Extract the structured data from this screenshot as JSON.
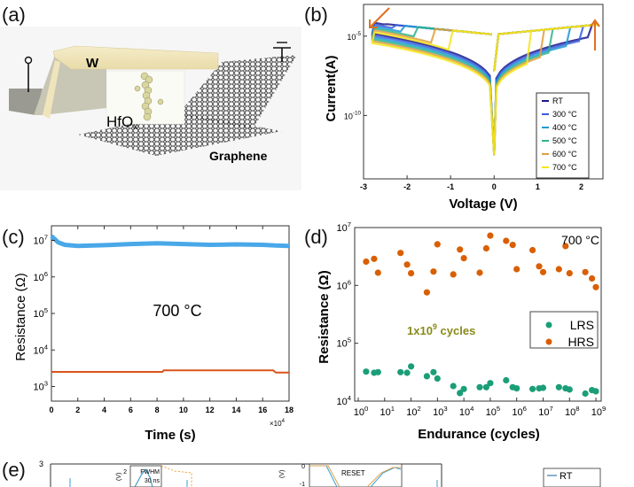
{
  "panels": {
    "a": {
      "label": "(a)",
      "labels": {
        "top_electrode": "W",
        "oxide": "HfO",
        "oxide_sub": "x",
        "bottom_electrode": "Graphene"
      }
    },
    "e": {
      "label": "(e)",
      "y_top_tick": "3",
      "inset1": {
        "ytick_top": "2",
        "ylabel": "(V)",
        "title": "FWHM",
        "subtitle": "30 ns"
      },
      "inset2": {
        "ytick_top": "0",
        "ytick_next": "-1",
        "ylabel": "(V)",
        "title": "RESET"
      },
      "legend": [
        "RT"
      ]
    }
  },
  "chart_data": [
    {
      "id": "b",
      "panel_label": "(b)",
      "type": "line",
      "title": "",
      "xlabel": "Voltage (V)",
      "ylabel": "Current(A)",
      "xlim": [
        -3,
        2.5
      ],
      "ylim_log10": [
        -14,
        -3
      ],
      "xticks": [
        "-3",
        "-2",
        "-1",
        "0",
        "1",
        "2"
      ],
      "xtick_values": [
        -3,
        -2,
        -1,
        0,
        1,
        2
      ],
      "yticks": [
        {
          "base": "10",
          "exp": "-5",
          "value": -5
        },
        {
          "base": "10",
          "exp": "-10",
          "value": -10
        }
      ],
      "legend_position": "bottom-right",
      "series": [
        {
          "name": "RT",
          "color": "#1a1a8c",
          "set_voltage": 2.2,
          "reset_voltage": -2.5
        },
        {
          "name": "300 °C",
          "color": "#3a5de0",
          "set_voltage": 2.0,
          "reset_voltage": -2.3
        },
        {
          "name": "400 °C",
          "color": "#1f9ad6",
          "set_voltage": 1.7,
          "reset_voltage": -2.1
        },
        {
          "name": "500 °C",
          "color": "#2db58c",
          "set_voltage": 1.3,
          "reset_voltage": -1.8
        },
        {
          "name": "600 °C",
          "color": "#e0a040",
          "set_voltage": 1.1,
          "reset_voltage": -1.4
        },
        {
          "name": "700 °C",
          "color": "#f5e61a",
          "set_voltage": 0.8,
          "reset_voltage": -1.0
        }
      ],
      "annotations": [
        {
          "type": "arrow",
          "direction": "down-left",
          "color": "#e07020"
        },
        {
          "type": "arrow",
          "direction": "up",
          "color": "#e07020"
        }
      ]
    },
    {
      "id": "c",
      "panel_label": "(c)",
      "type": "line",
      "xlabel": "Time (s)",
      "ylabel": "Resistance (Ω)",
      "x_multiplier": "×10",
      "x_multiplier_exp": "4",
      "xlim": [
        0,
        18
      ],
      "ylim_log10": [
        2.6,
        7.4
      ],
      "xticks": [
        "0",
        "2",
        "4",
        "6",
        "8",
        "10",
        "12",
        "14",
        "16",
        "18"
      ],
      "yticks": [
        {
          "base": "10",
          "exp": "7",
          "value": 7
        },
        {
          "base": "10",
          "exp": "6",
          "value": 6
        },
        {
          "base": "10",
          "exp": "5",
          "value": 5
        },
        {
          "base": "10",
          "exp": "4",
          "value": 4
        },
        {
          "base": "10",
          "exp": "3",
          "value": 3
        }
      ],
      "annotation": "700 °C",
      "series": [
        {
          "name": "HRS",
          "color": "#4aa8e8",
          "x": [
            0,
            0.5,
            1,
            2,
            4,
            6,
            8,
            10,
            12,
            14,
            16,
            17,
            18
          ],
          "y_log10": [
            7.12,
            6.95,
            6.88,
            6.85,
            6.87,
            6.9,
            6.92,
            6.9,
            6.88,
            6.89,
            6.88,
            6.86,
            6.85
          ]
        },
        {
          "name": "LRS",
          "color": "#d9541a",
          "x": [
            0,
            4,
            8.4,
            8.5,
            12,
            16.8,
            17,
            18
          ],
          "y_log10": [
            3.4,
            3.4,
            3.4,
            3.44,
            3.44,
            3.44,
            3.38,
            3.38
          ]
        }
      ]
    },
    {
      "id": "d",
      "panel_label": "(d)",
      "type": "scatter",
      "xlabel": "Endurance (cycles)",
      "ylabel": "Resistance (Ω)",
      "xlim_log10": [
        0,
        9.2
      ],
      "ylim_log10": [
        4,
        7
      ],
      "xticks": [
        {
          "base": "10",
          "exp": "0"
        },
        {
          "base": "10",
          "exp": "1"
        },
        {
          "base": "10",
          "exp": "2"
        },
        {
          "base": "10",
          "exp": "3"
        },
        {
          "base": "10",
          "exp": "4"
        },
        {
          "base": "10",
          "exp": "5"
        },
        {
          "base": "10",
          "exp": "6"
        },
        {
          "base": "10",
          "exp": "7"
        },
        {
          "base": "10",
          "exp": "8"
        },
        {
          "base": "10",
          "exp": "9"
        }
      ],
      "yticks": [
        {
          "base": "10",
          "exp": "7",
          "value": 7
        },
        {
          "base": "10",
          "exp": "6",
          "value": 6
        },
        {
          "base": "10",
          "exp": "5",
          "value": 5
        },
        {
          "base": "10",
          "exp": "4",
          "value": 4
        }
      ],
      "annotation_temp": "700 °C",
      "annotation_cycles": {
        "pre": "1x10",
        "exp": "9",
        "post": " cycles"
      },
      "legend_position": "right",
      "series": [
        {
          "name": "LRS",
          "color": "#1b9e77",
          "x_log10": [
            0.3,
            0.6,
            0.75,
            1.6,
            1.85,
            2.0,
            2.6,
            2.85,
            3.0,
            3.6,
            3.85,
            4.0,
            4.6,
            4.85,
            5.0,
            5.6,
            5.85,
            6.0,
            6.6,
            6.85,
            7.0,
            7.6,
            7.85,
            8.0,
            8.6,
            8.85,
            9.0
          ],
          "y_log10": [
            4.51,
            4.49,
            4.5,
            4.5,
            4.49,
            4.6,
            4.43,
            4.5,
            4.39,
            4.26,
            4.14,
            4.21,
            4.24,
            4.24,
            4.31,
            4.36,
            4.24,
            4.22,
            4.21,
            4.22,
            4.23,
            4.24,
            4.22,
            4.2,
            4.13,
            4.19,
            4.17
          ]
        },
        {
          "name": "HRS",
          "color": "#d95f02",
          "x_log10": [
            0.3,
            0.6,
            0.75,
            1.6,
            1.85,
            2.0,
            2.6,
            2.85,
            3.0,
            3.6,
            3.85,
            4.0,
            4.6,
            4.85,
            5.0,
            5.6,
            5.85,
            6.0,
            6.6,
            6.85,
            7.0,
            7.6,
            7.85,
            8.0,
            8.6,
            8.85,
            9.0
          ],
          "y_log10": [
            6.41,
            6.46,
            6.22,
            6.56,
            6.36,
            6.21,
            5.88,
            6.24,
            6.71,
            6.19,
            6.62,
            6.47,
            6.22,
            6.64,
            6.86,
            6.77,
            6.7,
            6.28,
            6.61,
            6.33,
            6.23,
            6.28,
            6.68,
            6.21,
            6.23,
            6.12,
            5.97
          ]
        }
      ]
    }
  ]
}
